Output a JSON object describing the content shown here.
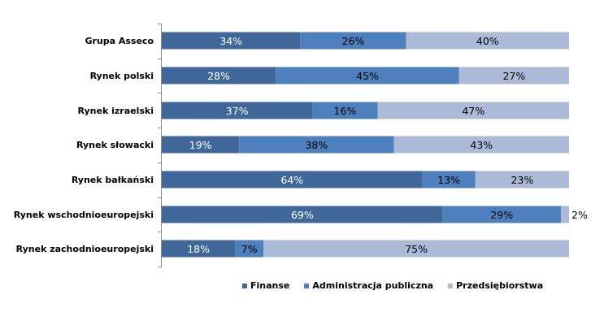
{
  "chart_data": {
    "type": "bar",
    "orientation": "horizontal",
    "stacked": true,
    "percent": true,
    "title": "",
    "xlabel": "",
    "ylabel": "",
    "xlim": [
      0,
      100
    ],
    "grid": false,
    "legend_position": "bottom",
    "categories": [
      "Grupa Asseco",
      "Rynek polski",
      "Rynek izraelski",
      "Rynek słowacki",
      "Rynek bałkański",
      "Rynek wschodnioeuropejski",
      "Rynek zachodnioeuropejski"
    ],
    "series": [
      {
        "name": "Finanse",
        "color": "#40679a",
        "label_color": "#ffffff",
        "values": [
          34,
          28,
          37,
          19,
          64,
          69,
          18
        ]
      },
      {
        "name": "Administracja publiczna",
        "color": "#4d80bd",
        "label_color": "#000000",
        "values": [
          26,
          45,
          16,
          38,
          13,
          29,
          7
        ]
      },
      {
        "name": "Przedsiębiorstwa",
        "color": "#abbad6",
        "label_color": "#000000",
        "values": [
          40,
          27,
          47,
          43,
          23,
          2,
          75
        ]
      }
    ],
    "data_labels": [
      [
        "34%",
        "26%",
        "40%"
      ],
      [
        "28%",
        "45%",
        "27%"
      ],
      [
        "37%",
        "16%",
        "47%"
      ],
      [
        "19%",
        "38%",
        "43%"
      ],
      [
        "64%",
        "13%",
        "23%"
      ],
      [
        "69%",
        "29%",
        "2%"
      ],
      [
        "18%",
        "7%",
        "75%"
      ]
    ]
  }
}
